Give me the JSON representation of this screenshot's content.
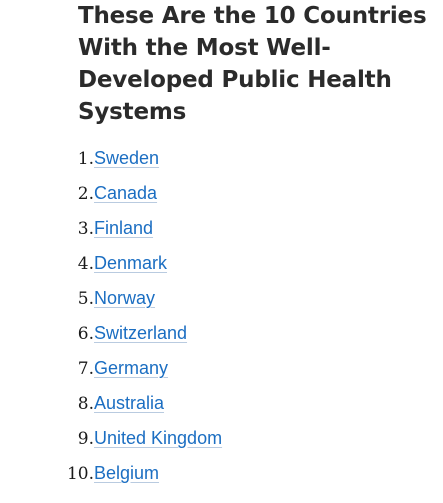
{
  "article": {
    "headline": "These Are the 10 Countries With the Most Well-Developed Public Health Systems",
    "countries": [
      {
        "number": "1.",
        "name": "Sweden"
      },
      {
        "number": "2.",
        "name": "Canada"
      },
      {
        "number": "3.",
        "name": "Finland"
      },
      {
        "number": "4.",
        "name": "Denmark"
      },
      {
        "number": "5.",
        "name": "Norway"
      },
      {
        "number": "6.",
        "name": "Switzerland"
      },
      {
        "number": "7.",
        "name": "Germany"
      },
      {
        "number": "8.",
        "name": "Australia"
      },
      {
        "number": "9.",
        "name": "United Kingdom"
      },
      {
        "number": "10.",
        "name": "Belgium"
      }
    ],
    "colors": {
      "headline": "#2b2b2b",
      "link": "#1b6ec2",
      "number": "#1a1a1a"
    }
  }
}
